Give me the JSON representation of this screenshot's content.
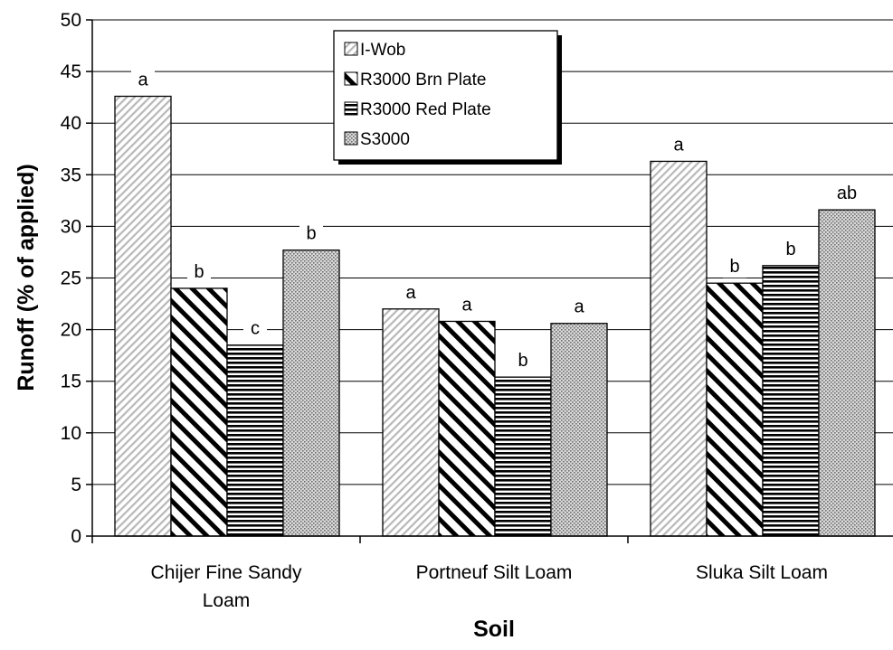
{
  "chart_data": {
    "type": "bar",
    "xlabel": "Soil",
    "ylabel": "Runoff (% of applied)",
    "ylim": [
      0,
      50
    ],
    "yticks": [
      0,
      5,
      10,
      15,
      20,
      25,
      30,
      35,
      40,
      45,
      50
    ],
    "grid": "horizontal",
    "legend_position": "top-center",
    "categories": [
      [
        "Chijer Fine Sandy",
        "Loam"
      ],
      [
        "Portneuf Silt Loam"
      ],
      [
        "Sluka Silt Loam"
      ]
    ],
    "series": [
      {
        "name": "I-Wob",
        "pattern": "diagonal-fine",
        "values": [
          42.6,
          22.0,
          36.3
        ],
        "labels": [
          "a",
          "a",
          "a"
        ]
      },
      {
        "name": "R3000 Brn Plate",
        "pattern": "diagonal-bold",
        "values": [
          24.0,
          20.8,
          24.5
        ],
        "labels": [
          "b",
          "a",
          "b"
        ]
      },
      {
        "name": "R3000 Red Plate",
        "pattern": "horizontal-lines",
        "values": [
          18.5,
          15.4,
          26.2
        ],
        "labels": [
          "c",
          "b",
          "b"
        ]
      },
      {
        "name": "S3000",
        "pattern": "crosshatch-dots",
        "values": [
          27.7,
          20.6,
          31.6
        ],
        "labels": [
          "b",
          "a",
          "ab"
        ]
      }
    ]
  }
}
